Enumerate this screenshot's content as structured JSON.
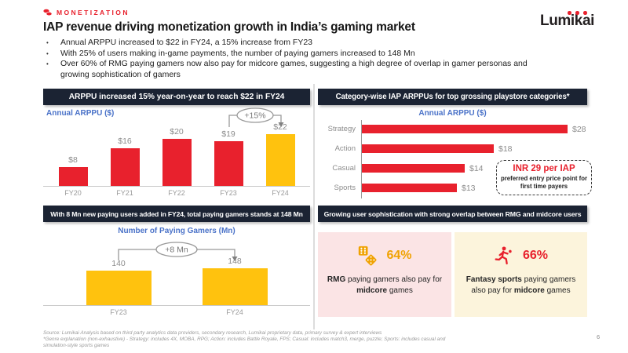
{
  "header": {
    "eyebrow": "MONETIZATION",
    "title": "IAP revenue driving monetization growth in India’s gaming market",
    "bullets": [
      "Annual ARPPU increased to $22 in FY24, a 15% increase from FY23",
      "With 25% of users making in-game payments, the number of paying gamers increased to 148 Mn",
      "Over 60% of RMG paying gamers now also pay for midcore games, suggesting a high degree of overlap in gamer personas and growing sophistication of gamers"
    ],
    "logo": "Lumikai"
  },
  "colors": {
    "brand_red": "#E8212D",
    "accent_yellow": "#FFC20E",
    "accent_gold": "#F0A202",
    "navy_header": "#1B2333",
    "chart_title_blue": "#4A72C8",
    "card_pink_bg": "#FBE4E5",
    "card_cream_bg": "#FCF4DC",
    "label_gray": "#8c8c8c"
  },
  "panels": {
    "arppu_trend": {
      "header": "ARPPU increased 15% year-on-year to reach $22 in FY24",
      "chart_title": "Annual ARPPU ($)",
      "annotation": "+15%"
    },
    "category_arppu": {
      "header": "Category-wise IAP ARPPUs for top grossing playstore categories*",
      "chart_title": "Annual ARPPU ($)",
      "callout": {
        "headline": "INR 29 per IAP",
        "body": "preferred entry price point for first time payers"
      }
    },
    "paying_gamers": {
      "header": "With 8 Mn new paying users added in FY24, total paying gamers stands at 148 Mn",
      "chart_title": "Number of Paying Gamers (Mn)",
      "annotation": "+8 Mn"
    },
    "overlap": {
      "header": "Growing user sophistication with strong overlap between RMG and midcore users",
      "cards": [
        {
          "icon": "dice-icon",
          "value": "64%",
          "accent": "#F0A202",
          "bg": "#FBE4E5",
          "segments": [
            {
              "t": "RMG",
              "b": true
            },
            {
              "t": " paying gamers also pay for ",
              "b": false
            },
            {
              "t": "midcore",
              "b": true
            },
            {
              "t": " games",
              "b": false
            }
          ]
        },
        {
          "icon": "runner-icon",
          "value": "66%",
          "accent": "#E8212D",
          "bg": "#FCF4DC",
          "segments": [
            {
              "t": "Fantasy sports",
              "b": true
            },
            {
              "t": " paying gamers also pay for ",
              "b": false
            },
            {
              "t": "midcore",
              "b": true
            },
            {
              "t": " games",
              "b": false
            }
          ]
        }
      ]
    }
  },
  "chart_data": [
    {
      "id": "arppu_trend",
      "type": "bar",
      "title": "Annual ARPPU ($)",
      "categories": [
        "FY20",
        "FY21",
        "FY22",
        "FY23",
        "FY24"
      ],
      "values": [
        8,
        16,
        20,
        19,
        22
      ],
      "value_labels": [
        "$8",
        "$16",
        "$20",
        "$19",
        "$22"
      ],
      "bar_colors": [
        "#E8212D",
        "#E8212D",
        "#E8212D",
        "#E8212D",
        "#FFC20E"
      ],
      "ylim": [
        0,
        25
      ],
      "annotation": "+15% from FY23 to FY24"
    },
    {
      "id": "category_arppu",
      "type": "bar-horizontal",
      "title": "Annual ARPPU ($)",
      "categories": [
        "Strategy",
        "Action",
        "Casual",
        "Sports"
      ],
      "values": [
        28,
        18,
        14,
        13
      ],
      "value_labels": [
        "$28",
        "$18",
        "$14",
        "$13"
      ],
      "bar_color": "#E8212D",
      "xlim": [
        0,
        30
      ]
    },
    {
      "id": "paying_gamers",
      "type": "bar",
      "title": "Number of Paying Gamers (Mn)",
      "categories": [
        "FY23",
        "FY24"
      ],
      "values": [
        140,
        148
      ],
      "value_labels": [
        "140",
        "148"
      ],
      "bar_colors": [
        "#FFC20E",
        "#FFC20E"
      ],
      "ylim": [
        0,
        160
      ],
      "annotation": "+8 Mn from FY23 to FY24"
    }
  ],
  "footer": {
    "line1": "Source: Lumikai Analysis based on third party analytics data providers, secondary research, Lumikai proprietary data, primary survey & expert interviews",
    "line2": "*Genre explanation (non-exhaustive) - Strategy: includes 4X, MOBA, RPG; Action: includes Battle Royale, FPS; Casual: includes match3, merge, puzzle; Sports: includes casual and simulation-style sports games",
    "page_number": "6"
  }
}
